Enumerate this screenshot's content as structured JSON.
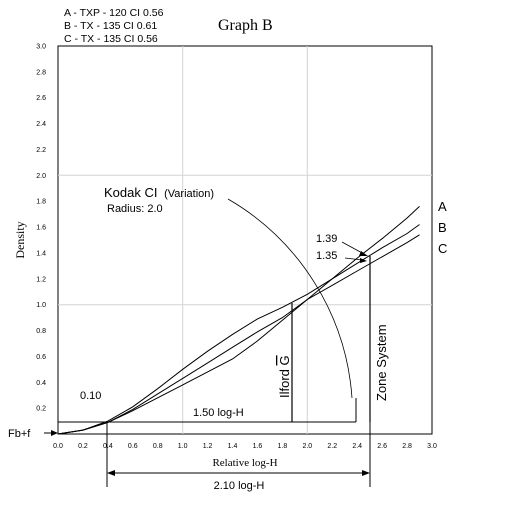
{
  "chart_data": {
    "type": "line",
    "title": "Graph B",
    "xlabel": "Relative log-H",
    "ylabel": "Density",
    "xlim": [
      0,
      3.0
    ],
    "ylim": [
      0,
      3.0
    ],
    "x_ticks": [
      "0.0",
      "0.2",
      "0.4",
      "0.6",
      "0.8",
      "1.0",
      "1.2",
      "1.4",
      "1.6",
      "1.8",
      "2.0",
      "2.2",
      "2.4",
      "2.6",
      "2.8",
      "3.0"
    ],
    "y_ticks": [
      "0.2",
      "0.4",
      "0.6",
      "0.8",
      "1.0",
      "1.2",
      "1.4",
      "1.6",
      "1.8",
      "2.0",
      "2.2",
      "2.4",
      "2.6",
      "2.8",
      "3.0"
    ],
    "grid": true,
    "legend": [
      "A - TXP - 120 CI 0.56",
      "B - TX - 135   CI 0.61",
      "C - TX - 135   CI 0.56"
    ],
    "series": [
      {
        "name": "A",
        "x": [
          0.0,
          0.2,
          0.4,
          0.6,
          0.8,
          1.0,
          1.2,
          1.4,
          1.6,
          1.8,
          2.0,
          2.2,
          2.4,
          2.6,
          2.8,
          2.9
        ],
        "y": [
          0.0,
          0.03,
          0.09,
          0.19,
          0.31,
          0.43,
          0.55,
          0.67,
          0.79,
          0.9,
          1.04,
          1.2,
          1.36,
          1.51,
          1.67,
          1.76
        ]
      },
      {
        "name": "B",
        "x": [
          0.0,
          0.2,
          0.4,
          0.6,
          0.8,
          1.0,
          1.2,
          1.4,
          1.6,
          1.8,
          2.0,
          2.2,
          2.4,
          2.6,
          2.8,
          2.9
        ],
        "y": [
          0.0,
          0.03,
          0.1,
          0.21,
          0.35,
          0.5,
          0.64,
          0.77,
          0.89,
          0.98,
          1.08,
          1.2,
          1.32,
          1.44,
          1.55,
          1.62
        ]
      },
      {
        "name": "C",
        "x": [
          0.0,
          0.2,
          0.4,
          0.6,
          0.8,
          1.0,
          1.2,
          1.4,
          1.6,
          1.8,
          2.0,
          2.2,
          2.4,
          2.6,
          2.8,
          2.9
        ],
        "y": [
          0.0,
          0.03,
          0.09,
          0.18,
          0.28,
          0.38,
          0.48,
          0.58,
          0.72,
          0.88,
          1.04,
          1.15,
          1.26,
          1.37,
          1.48,
          1.54
        ]
      }
    ],
    "annotations": {
      "kodak_title": "Kodak CI",
      "kodak_variation": "(Variation)",
      "radius_label": "Radius: 2.0",
      "val_139": "1.39",
      "val_135": "1.35",
      "val_010": "0.10",
      "ilford_label": "Ilford ",
      "ilford_g": "G",
      "zone_label": "Zone System",
      "range_150": "1.50 log-H",
      "range_210": "2.10 log-H",
      "fbf": "Fb+f",
      "curve_a": "A",
      "curve_b": "B",
      "curve_c": "C"
    }
  }
}
